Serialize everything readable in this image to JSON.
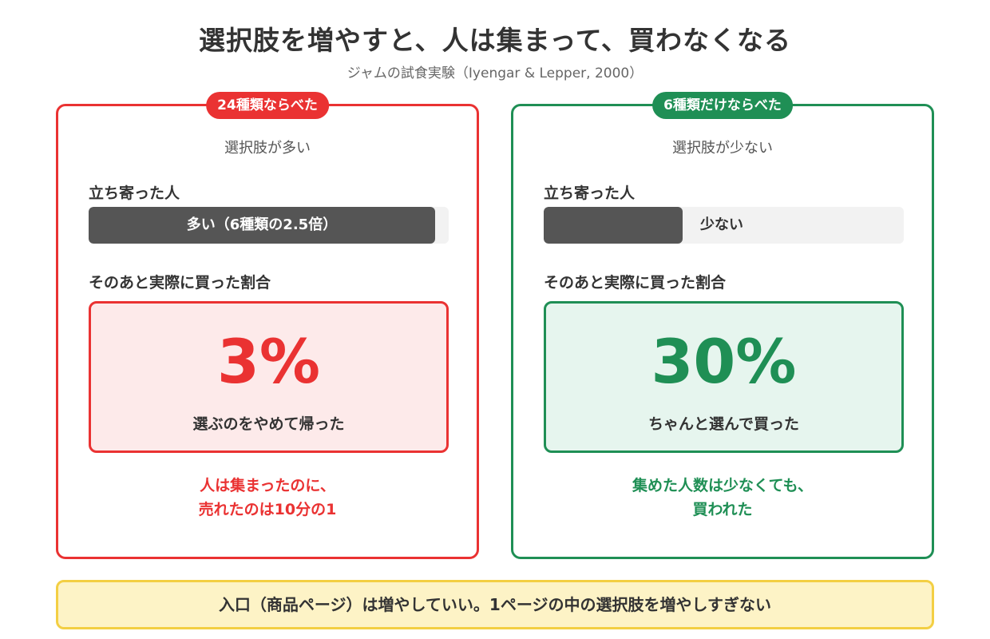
{
  "header": {
    "title": "選択肢を増やすと、人は集まって、買わなくなる",
    "subtitle": "ジャムの試食実験（Iyengar & Lepper, 2000）"
  },
  "panels": {
    "left": {
      "badge": "24種類ならべた",
      "subtitle": "選択肢が多い",
      "visit_label": "立ち寄った人",
      "visit_bar_text": "多い（6種類の2.5倍）",
      "buy_label": "そのあと実際に買った割合",
      "purchase_rate": "3%",
      "purchase_desc": "選ぶのをやめて帰った",
      "note_line1": "人は集まったのに、",
      "note_line2": "売れたのは10分の1",
      "color": "#ea3232"
    },
    "right": {
      "badge": "6種類だけならべた",
      "subtitle": "選択肢が少ない",
      "visit_label": "立ち寄った人",
      "visit_bar_text": "少ない",
      "buy_label": "そのあと実際に買った割合",
      "purchase_rate": "30%",
      "purchase_desc": "ちゃんと選んで買った",
      "note_line1": "集めた人数は少なくても、",
      "note_line2": "買われた",
      "color": "#1f8f55"
    }
  },
  "visitors_relative": {
    "left": 2.5,
    "right": 1
  },
  "footer": {
    "text": "入口（商品ページ）は増やしていい。1ページの中の選択肢を増やしすぎない"
  }
}
